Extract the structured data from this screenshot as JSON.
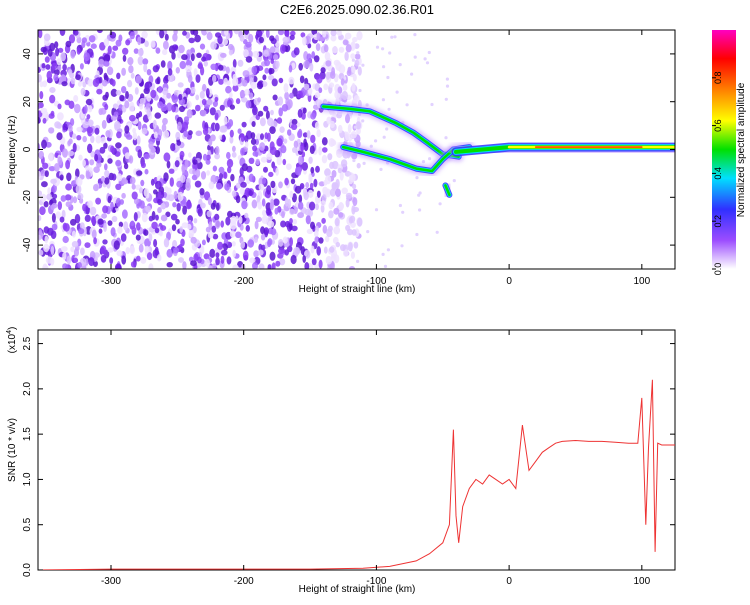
{
  "title": "C2E6.2025.090.02.36.R01",
  "chart_data": [
    {
      "type": "heatmap",
      "xlabel": "Height of straight line (km)",
      "ylabel": "Frequency (Hz)",
      "xlim": [
        -355,
        125
      ],
      "ylim": [
        -50,
        50
      ],
      "xticks": [
        -300,
        -200,
        -100,
        0,
        100
      ],
      "yticks": [
        -40,
        -20,
        0,
        20,
        40
      ],
      "colorbar": {
        "label": "Normalized spectral amplitude",
        "range": [
          0,
          1
        ],
        "ticks": [
          "0.0",
          "0.2",
          "0.4",
          "0.6",
          "0.8"
        ],
        "colors": [
          "#ffffff",
          "#9c4dff",
          "#3030ff",
          "#00e0ff",
          "#00e000",
          "#ffff00",
          "#ff8000",
          "#ff0000",
          "#ff00c0"
        ]
      },
      "noise_region": {
        "x_start": -355,
        "x_end": -120
      },
      "features": [
        {
          "name": "upper branch",
          "points": [
            [
              -140,
              18
            ],
            [
              -120,
              17
            ],
            [
              -105,
              16
            ],
            [
              -85,
              11
            ],
            [
              -72,
              7
            ],
            [
              -62,
              3
            ],
            [
              -50,
              -2
            ],
            [
              -38,
              -3
            ]
          ]
        },
        {
          "name": "lower branch",
          "points": [
            [
              -125,
              1
            ],
            [
              -110,
              -1
            ],
            [
              -90,
              -4
            ],
            [
              -70,
              -8
            ],
            [
              -58,
              -9
            ],
            [
              -50,
              -4
            ],
            [
              -42,
              0
            ],
            [
              -30,
              1
            ]
          ]
        },
        {
          "name": "merged signal",
          "points": [
            [
              -40,
              -1
            ],
            [
              -20,
              0
            ],
            [
              0,
              1
            ],
            [
              20,
              1
            ],
            [
              40,
              1
            ],
            [
              60,
              1
            ],
            [
              80,
              1
            ],
            [
              100,
              1
            ],
            [
              125,
              1
            ]
          ]
        },
        {
          "name": "tail",
          "points": [
            [
              -48,
              -15
            ],
            [
              -45,
              -19
            ]
          ]
        }
      ]
    },
    {
      "type": "line",
      "xlabel": "Height of straight line (km)",
      "ylabel": "SNR (10 * v/v)",
      "scale_label": "(x10",
      "scale_exponent": "4",
      "xlim": [
        -355,
        125
      ],
      "ylim": [
        0,
        2.65
      ],
      "xticks": [
        -300,
        -200,
        -100,
        0,
        100
      ],
      "yticks": [
        "0.0",
        "0.5",
        "1.0",
        "1.5",
        "2.0",
        "2.5"
      ],
      "color": "#ee3333",
      "x": [
        -355,
        -300,
        -250,
        -200,
        -150,
        -110,
        -90,
        -70,
        -60,
        -50,
        -45,
        -42,
        -40,
        -38,
        -35,
        -30,
        -25,
        -20,
        -15,
        -10,
        -5,
        0,
        5,
        10,
        15,
        20,
        25,
        30,
        35,
        40,
        50,
        60,
        70,
        80,
        90,
        97,
        100,
        103,
        105,
        108,
        110,
        112,
        115,
        125
      ],
      "values": [
        0.0,
        0.01,
        0.01,
        0.01,
        0.01,
        0.02,
        0.04,
        0.1,
        0.18,
        0.3,
        0.5,
        1.55,
        0.6,
        0.3,
        0.7,
        0.9,
        1.0,
        0.95,
        1.05,
        1.0,
        0.95,
        1.0,
        0.9,
        1.6,
        1.1,
        1.2,
        1.3,
        1.35,
        1.4,
        1.42,
        1.43,
        1.42,
        1.42,
        1.41,
        1.4,
        1.4,
        1.9,
        0.5,
        1.35,
        2.1,
        0.2,
        1.4,
        1.38,
        1.38
      ]
    }
  ]
}
